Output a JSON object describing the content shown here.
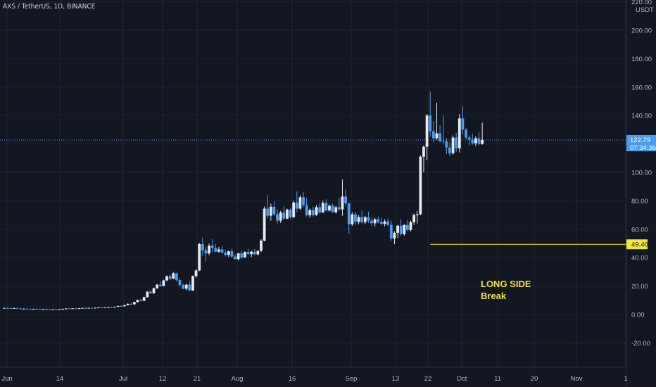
{
  "header": {
    "symbol": "AXS / TetherUS, 1D, BINANCE"
  },
  "colors": {
    "background": "#131722",
    "grid": "#1f2433",
    "up_candle": "#e8e9ec",
    "down_candle": "#4a9cf0",
    "price_line": "#4a9cf0",
    "support_line": "#f5e63a",
    "annotation": "#f0e034"
  },
  "chart_data": {
    "type": "candlestick",
    "title": "AXS / TetherUS, 1D, BINANCE",
    "y_unit": "USDT",
    "ylim": [
      -40,
      220
    ],
    "y_ticks": [
      "220.00",
      "200.00",
      "180.00",
      "160.00",
      "140.00",
      "120.00",
      "100.00",
      "80.00",
      "60.00",
      "40.00",
      "20.00",
      "0.00",
      "-20.00"
    ],
    "x_ticks": [
      "Jun",
      "14",
      "Jul",
      "12",
      "21",
      "Aug",
      "16",
      "Sep",
      "13",
      "22",
      "Oct",
      "11",
      "20",
      "Nov",
      "1"
    ],
    "last_price": {
      "value": "122.79",
      "countdown": "07:34:36"
    },
    "support_level": {
      "value": 49.4,
      "label": "49.40"
    },
    "annotation": {
      "line1": "LONG SIDE",
      "line2": "Break"
    },
    "grid": true,
    "candles": [
      [
        4.5,
        4.8,
        4.2,
        4.6
      ],
      [
        4.6,
        4.9,
        4.3,
        4.4
      ],
      [
        4.4,
        4.7,
        4.1,
        4.3
      ],
      [
        4.3,
        4.6,
        4.0,
        4.5
      ],
      [
        4.5,
        4.8,
        4.2,
        4.2
      ],
      [
        4.2,
        4.5,
        3.9,
        4.0
      ],
      [
        4.0,
        4.3,
        3.8,
        4.1
      ],
      [
        4.1,
        4.4,
        3.9,
        3.9
      ],
      [
        3.9,
        4.2,
        3.7,
        3.8
      ],
      [
        3.8,
        4.1,
        3.6,
        4.0
      ],
      [
        4.0,
        4.3,
        3.8,
        3.8
      ],
      [
        3.8,
        4.1,
        3.6,
        3.7
      ],
      [
        3.7,
        4.0,
        3.5,
        3.9
      ],
      [
        3.9,
        4.2,
        3.7,
        3.6
      ],
      [
        3.6,
        3.9,
        3.4,
        3.5
      ],
      [
        3.5,
        3.8,
        3.3,
        3.7
      ],
      [
        3.7,
        4.0,
        3.5,
        3.6
      ],
      [
        3.6,
        3.9,
        3.4,
        3.8
      ],
      [
        3.8,
        4.1,
        3.6,
        4.0
      ],
      [
        4.0,
        4.4,
        3.8,
        4.2
      ],
      [
        4.2,
        4.5,
        3.9,
        4.1
      ],
      [
        4.1,
        4.4,
        3.9,
        4.3
      ],
      [
        4.3,
        4.6,
        4.0,
        4.0
      ],
      [
        4.0,
        4.3,
        3.8,
        4.4
      ],
      [
        4.4,
        4.8,
        4.2,
        4.6
      ],
      [
        4.6,
        4.9,
        4.3,
        4.3
      ],
      [
        4.3,
        4.6,
        4.1,
        4.7
      ],
      [
        4.7,
        5.0,
        4.4,
        4.5
      ],
      [
        4.5,
        4.8,
        4.2,
        4.8
      ],
      [
        4.8,
        5.2,
        4.5,
        5.0
      ],
      [
        5.0,
        5.3,
        4.7,
        4.9
      ],
      [
        4.9,
        5.2,
        4.6,
        5.1
      ],
      [
        5.1,
        5.5,
        4.8,
        5.3
      ],
      [
        5.3,
        5.6,
        5.0,
        5.2
      ],
      [
        5.2,
        5.6,
        5.0,
        5.5
      ],
      [
        5.5,
        6.2,
        5.3,
        6.0
      ],
      [
        6.0,
        6.5,
        5.6,
        5.8
      ],
      [
        5.8,
        6.8,
        5.6,
        6.6
      ],
      [
        6.6,
        7.8,
        6.4,
        7.5
      ],
      [
        7.5,
        8.2,
        7.0,
        7.2
      ],
      [
        7.2,
        9.0,
        7.0,
        8.8
      ],
      [
        8.8,
        10.5,
        8.4,
        10.2
      ],
      [
        10.2,
        10.8,
        9.2,
        9.6
      ],
      [
        9.6,
        12.5,
        9.4,
        12.2
      ],
      [
        12.2,
        16.5,
        11.8,
        16.0
      ],
      [
        16.0,
        17.2,
        14.5,
        15.0
      ],
      [
        15.0,
        19.0,
        14.6,
        18.5
      ],
      [
        18.5,
        21.5,
        18.0,
        21.0
      ],
      [
        21.0,
        23.5,
        19.5,
        20.2
      ],
      [
        20.2,
        24.5,
        19.8,
        24.0
      ],
      [
        24.0,
        27.5,
        23.5,
        27.0
      ],
      [
        27.0,
        28.5,
        24.0,
        25.2
      ],
      [
        25.2,
        30.0,
        25.0,
        29.0
      ],
      [
        29.0,
        29.5,
        23.0,
        24.2
      ],
      [
        24.2,
        25.5,
        19.5,
        20.8
      ],
      [
        20.8,
        22.0,
        17.8,
        18.2
      ],
      [
        18.2,
        21.5,
        17.0,
        21.0
      ],
      [
        21.0,
        23.5,
        16.5,
        17.0
      ],
      [
        17.0,
        27.5,
        16.5,
        27.0
      ],
      [
        27.0,
        32.0,
        26.0,
        31.0
      ],
      [
        31.0,
        50.5,
        30.5,
        49.5
      ],
      [
        49.5,
        54.0,
        41.5,
        45.2
      ],
      [
        45.2,
        47.5,
        37.5,
        43.0
      ],
      [
        43.0,
        50.0,
        41.8,
        48.5
      ],
      [
        48.5,
        53.0,
        44.0,
        46.8
      ],
      [
        46.8,
        49.5,
        44.0,
        44.2
      ],
      [
        44.2,
        47.5,
        43.5,
        45.8
      ],
      [
        45.8,
        48.0,
        43.0,
        43.5
      ],
      [
        43.5,
        45.5,
        41.0,
        42.0
      ],
      [
        42.0,
        45.0,
        40.5,
        44.5
      ],
      [
        44.5,
        46.5,
        40.0,
        40.8
      ],
      [
        40.8,
        42.5,
        38.5,
        39.0
      ],
      [
        39.0,
        43.5,
        38.0,
        43.0
      ],
      [
        43.0,
        45.0,
        39.0,
        40.2
      ],
      [
        40.2,
        44.5,
        39.8,
        44.0
      ],
      [
        44.0,
        46.0,
        42.0,
        42.5
      ],
      [
        42.5,
        45.0,
        40.5,
        44.2
      ],
      [
        44.2,
        46.0,
        41.8,
        42.3
      ],
      [
        42.3,
        45.0,
        41.5,
        44.8
      ],
      [
        44.8,
        53.0,
        44.0,
        52.0
      ],
      [
        52.0,
        76.0,
        51.5,
        74.5
      ],
      [
        74.5,
        84.0,
        67.5,
        69.5
      ],
      [
        69.5,
        78.0,
        66.0,
        75.8
      ],
      [
        75.8,
        79.5,
        69.5,
        70.5
      ],
      [
        70.5,
        74.0,
        64.0,
        66.0
      ],
      [
        66.0,
        73.0,
        64.5,
        71.8
      ],
      [
        71.8,
        76.0,
        66.5,
        67.5
      ],
      [
        67.5,
        74.5,
        67.0,
        73.8
      ],
      [
        73.8,
        75.0,
        67.5,
        68.5
      ],
      [
        68.5,
        80.0,
        68.0,
        78.8
      ],
      [
        78.8,
        86.5,
        72.0,
        74.5
      ],
      [
        74.5,
        84.0,
        73.5,
        82.5
      ],
      [
        82.5,
        86.0,
        75.5,
        77.0
      ],
      [
        77.0,
        82.0,
        69.0,
        69.8
      ],
      [
        69.8,
        74.5,
        68.0,
        73.5
      ],
      [
        73.5,
        76.0,
        69.0,
        70.0
      ],
      [
        70.0,
        77.0,
        69.5,
        75.5
      ],
      [
        75.5,
        78.5,
        71.0,
        71.8
      ],
      [
        71.8,
        80.0,
        71.5,
        78.5
      ],
      [
        78.5,
        81.0,
        72.5,
        73.2
      ],
      [
        73.2,
        77.5,
        72.5,
        76.5
      ],
      [
        76.5,
        78.0,
        71.5,
        72.0
      ],
      [
        72.0,
        76.5,
        71.0,
        75.5
      ],
      [
        75.5,
        82.0,
        73.0,
        74.0
      ],
      [
        74.0,
        95.0,
        69.5,
        83.0
      ],
      [
        83.0,
        88.0,
        76.5,
        78.2
      ],
      [
        78.2,
        79.0,
        57.0,
        63.5
      ],
      [
        63.5,
        72.0,
        62.5,
        70.5
      ],
      [
        70.5,
        72.0,
        63.0,
        65.2
      ],
      [
        65.2,
        70.0,
        63.5,
        68.5
      ],
      [
        68.5,
        73.0,
        64.0,
        65.0
      ],
      [
        65.0,
        69.5,
        63.5,
        68.5
      ],
      [
        68.5,
        72.5,
        64.5,
        66.0
      ],
      [
        66.0,
        68.0,
        62.5,
        64.2
      ],
      [
        64.2,
        68.0,
        62.0,
        67.0
      ],
      [
        67.0,
        69.0,
        64.0,
        65.2
      ],
      [
        65.2,
        68.0,
        63.0,
        63.8
      ],
      [
        63.8,
        67.0,
        62.0,
        65.5
      ],
      [
        65.5,
        67.5,
        62.0,
        63.0
      ],
      [
        63.0,
        66.0,
        52.0,
        53.5
      ],
      [
        53.5,
        58.5,
        49.4,
        57.5
      ],
      [
        57.5,
        63.0,
        54.0,
        62.5
      ],
      [
        62.5,
        67.0,
        55.5,
        56.5
      ],
      [
        56.5,
        63.5,
        55.5,
        63.0
      ],
      [
        63.0,
        66.5,
        58.5,
        59.5
      ],
      [
        59.5,
        66.0,
        58.5,
        65.0
      ],
      [
        65.0,
        71.0,
        63.0,
        70.0
      ],
      [
        70.0,
        73.0,
        64.0,
        70.5
      ],
      [
        70.5,
        112.0,
        70.0,
        111.0
      ],
      [
        111.0,
        119.0,
        100.0,
        118.0
      ],
      [
        118.0,
        141.0,
        108.5,
        140.0
      ],
      [
        140.0,
        157.0,
        125.0,
        129.0
      ],
      [
        129.0,
        136.0,
        121.0,
        124.0
      ],
      [
        124.0,
        149.0,
        123.0,
        127.5
      ],
      [
        127.5,
        133.0,
        121.0,
        122.0
      ],
      [
        122.0,
        140.0,
        120.0,
        121.8
      ],
      [
        121.8,
        124.0,
        113.0,
        117.5
      ],
      [
        117.5,
        121.0,
        111.5,
        113.5
      ],
      [
        113.5,
        126.0,
        112.5,
        124.5
      ],
      [
        124.5,
        128.0,
        114.5,
        117.0
      ],
      [
        117.0,
        141.0,
        114.0,
        138.0
      ],
      [
        138.0,
        146.5,
        126.5,
        130.0
      ],
      [
        130.0,
        131.0,
        123.5,
        124.5
      ],
      [
        124.5,
        126.0,
        119.0,
        123.0
      ],
      [
        123.0,
        127.0,
        119.5,
        120.5
      ],
      [
        120.5,
        125.5,
        118.5,
        124.0
      ],
      [
        124.0,
        128.0,
        119.0,
        120.0
      ],
      [
        120.0,
        135.0,
        119.5,
        122.79
      ]
    ]
  }
}
